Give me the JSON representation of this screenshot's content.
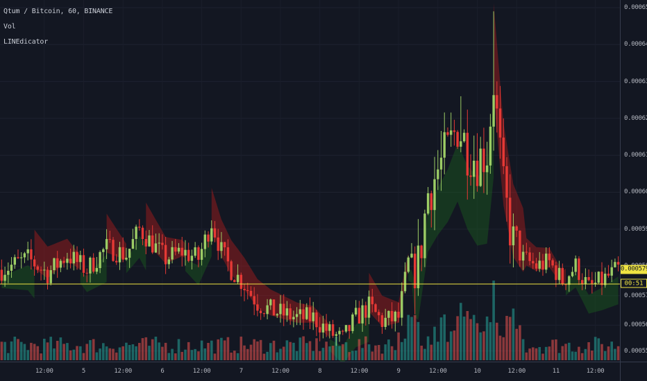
{
  "legend": {
    "symbol": "Qtum / Bitcoin, 60, BINANCE",
    "vol": "Vol",
    "indicator": "LINEdicator"
  },
  "last_price": {
    "value": 0.000579,
    "label": "0.000579",
    "countdown": "00:51",
    "color": "#f0e442"
  },
  "colors": {
    "background": "#131722",
    "up": "#9ccc65",
    "down": "#e53935",
    "vol_up": "#26a69a",
    "vol_down": "#ef5350",
    "band_up": "#1b5e20",
    "band_down": "#b71c1c"
  },
  "chart_data": {
    "type": "candlestick",
    "symbol": "Qtum / Bitcoin",
    "interval": "60",
    "exchange": "BINANCE",
    "indicators": [
      "Vol",
      "LINEdicator"
    ],
    "ylim": [
      0.0005545,
      0.0006515
    ],
    "y_ticks": [
      0.000557,
      0.000564,
      0.000572,
      0.00058,
      0.00059,
      0.0006,
      0.00061,
      0.00062,
      0.00063,
      0.00064,
      0.00065
    ],
    "y_tick_labels": [
      "0.000557",
      "0.000564",
      "0.000572",
      "0.000580",
      "0.000590",
      "0.000600",
      "0.000610",
      "0.000620",
      "0.000630",
      "0.000640",
      "0.000650"
    ],
    "x_ticks": [
      {
        "label": "12:00",
        "bar": 13
      },
      {
        "label": "5",
        "bar": 25
      },
      {
        "label": "12:00",
        "bar": 37
      },
      {
        "label": "6",
        "bar": 49
      },
      {
        "label": "12:00",
        "bar": 61
      },
      {
        "label": "7",
        "bar": 73
      },
      {
        "label": "12:00",
        "bar": 85
      },
      {
        "label": "8",
        "bar": 97
      },
      {
        "label": "12:00",
        "bar": 109
      },
      {
        "label": "9",
        "bar": 121
      },
      {
        "label": "12:00",
        "bar": 133
      },
      {
        "label": "10",
        "bar": 145
      },
      {
        "label": "12:00",
        "bar": 157
      },
      {
        "label": "11",
        "bar": 169
      },
      {
        "label": "12:00",
        "bar": 181
      }
    ],
    "price_path": [
      [
        0,
        0.000579
      ],
      [
        8,
        0.000582
      ],
      [
        14,
        0.000578
      ],
      [
        20,
        0.000583
      ],
      [
        26,
        0.000579
      ],
      [
        32,
        0.000585
      ],
      [
        38,
        0.000583
      ],
      [
        42,
        0.00059
      ],
      [
        46,
        0.000586
      ],
      [
        50,
        0.000582
      ],
      [
        55,
        0.000584
      ],
      [
        60,
        0.000582
      ],
      [
        64,
        0.000592
      ],
      [
        67,
        0.000584
      ],
      [
        70,
        0.000579
      ],
      [
        74,
        0.000575
      ],
      [
        78,
        0.00057
      ],
      [
        82,
        0.000568
      ],
      [
        86,
        0.000567
      ],
      [
        90,
        0.000566
      ],
      [
        95,
        0.000566
      ],
      [
        100,
        0.000562
      ],
      [
        104,
        0.00056
      ],
      [
        108,
        0.000566
      ],
      [
        112,
        0.000569
      ],
      [
        116,
        0.000565
      ],
      [
        121,
        0.000566
      ],
      [
        124,
        0.000581
      ],
      [
        127,
        0.00058
      ],
      [
        130,
        0.0006
      ],
      [
        133,
        0.000606
      ],
      [
        136,
        0.000611
      ],
      [
        139,
        0.000618
      ],
      [
        142,
        0.000612
      ],
      [
        145,
        0.000609
      ],
      [
        148,
        0.000611
      ],
      [
        150,
        0.00063
      ],
      [
        153,
        0.0006
      ],
      [
        156,
        0.000586
      ],
      [
        159,
        0.000582
      ],
      [
        163,
        0.00058
      ],
      [
        167,
        0.000581
      ],
      [
        171,
        0.000576
      ],
      [
        175,
        0.00058
      ],
      [
        179,
        0.000574
      ],
      [
        183,
        0.000576
      ],
      [
        188,
        0.000579
      ]
    ],
    "bar_count": 189,
    "volume_max": 100
  }
}
